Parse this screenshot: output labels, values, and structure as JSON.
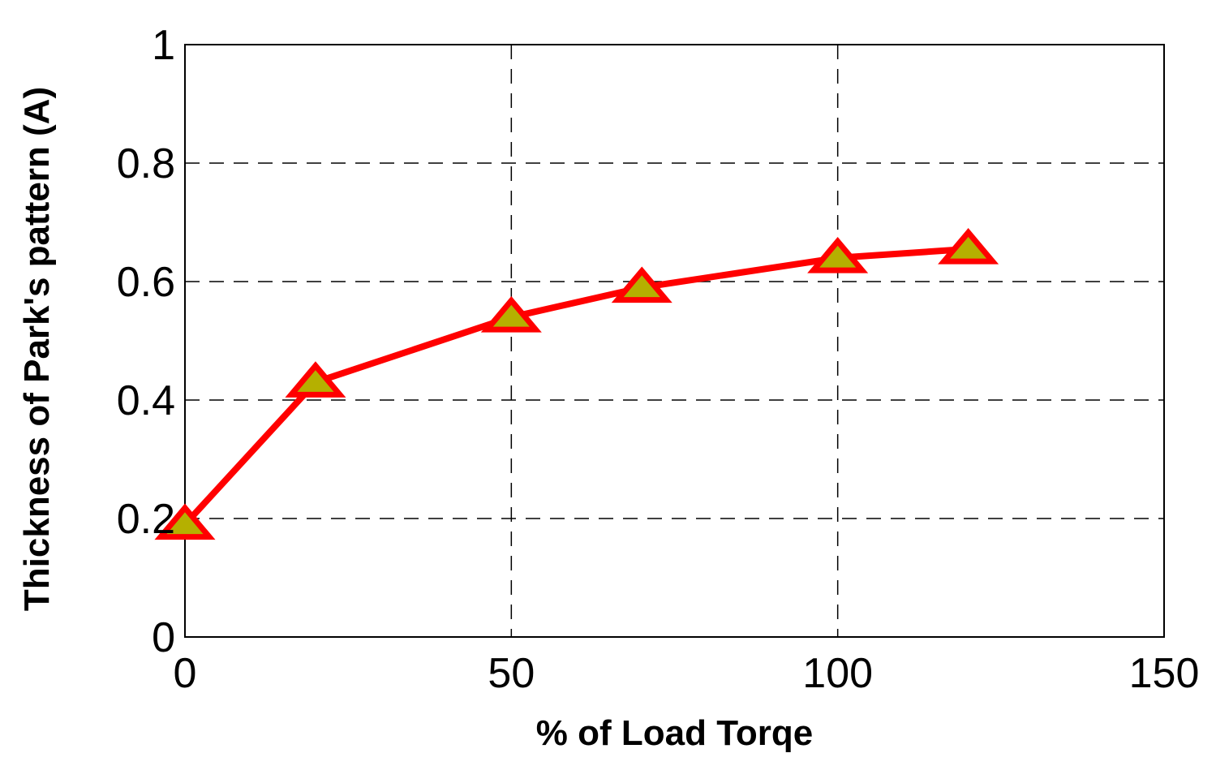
{
  "chart_data": {
    "type": "line",
    "title": "",
    "xlabel": "% of Load Torqe",
    "ylabel": "Thickness of Park's pattern (A)",
    "xlim": [
      0,
      150
    ],
    "ylim": [
      0,
      1
    ],
    "xticks": [
      0,
      50,
      100,
      150
    ],
    "yticks": [
      0,
      0.2,
      0.4,
      0.6,
      0.8,
      1
    ],
    "xtick_labels": [
      "0",
      "50",
      "100",
      "150"
    ],
    "ytick_labels": [
      "0",
      "0.2",
      "0.4",
      "0.6",
      "0.8",
      "1"
    ],
    "grid": true,
    "legend": "none",
    "series": [
      {
        "x": [
          0,
          20,
          50,
          70,
          100,
          120
        ],
        "y": [
          0.19,
          0.43,
          0.54,
          0.59,
          0.64,
          0.655
        ],
        "line_color": "#ff0000",
        "marker": "triangle",
        "marker_fill": "#b5b000",
        "marker_edge": "#ff0000"
      }
    ]
  }
}
